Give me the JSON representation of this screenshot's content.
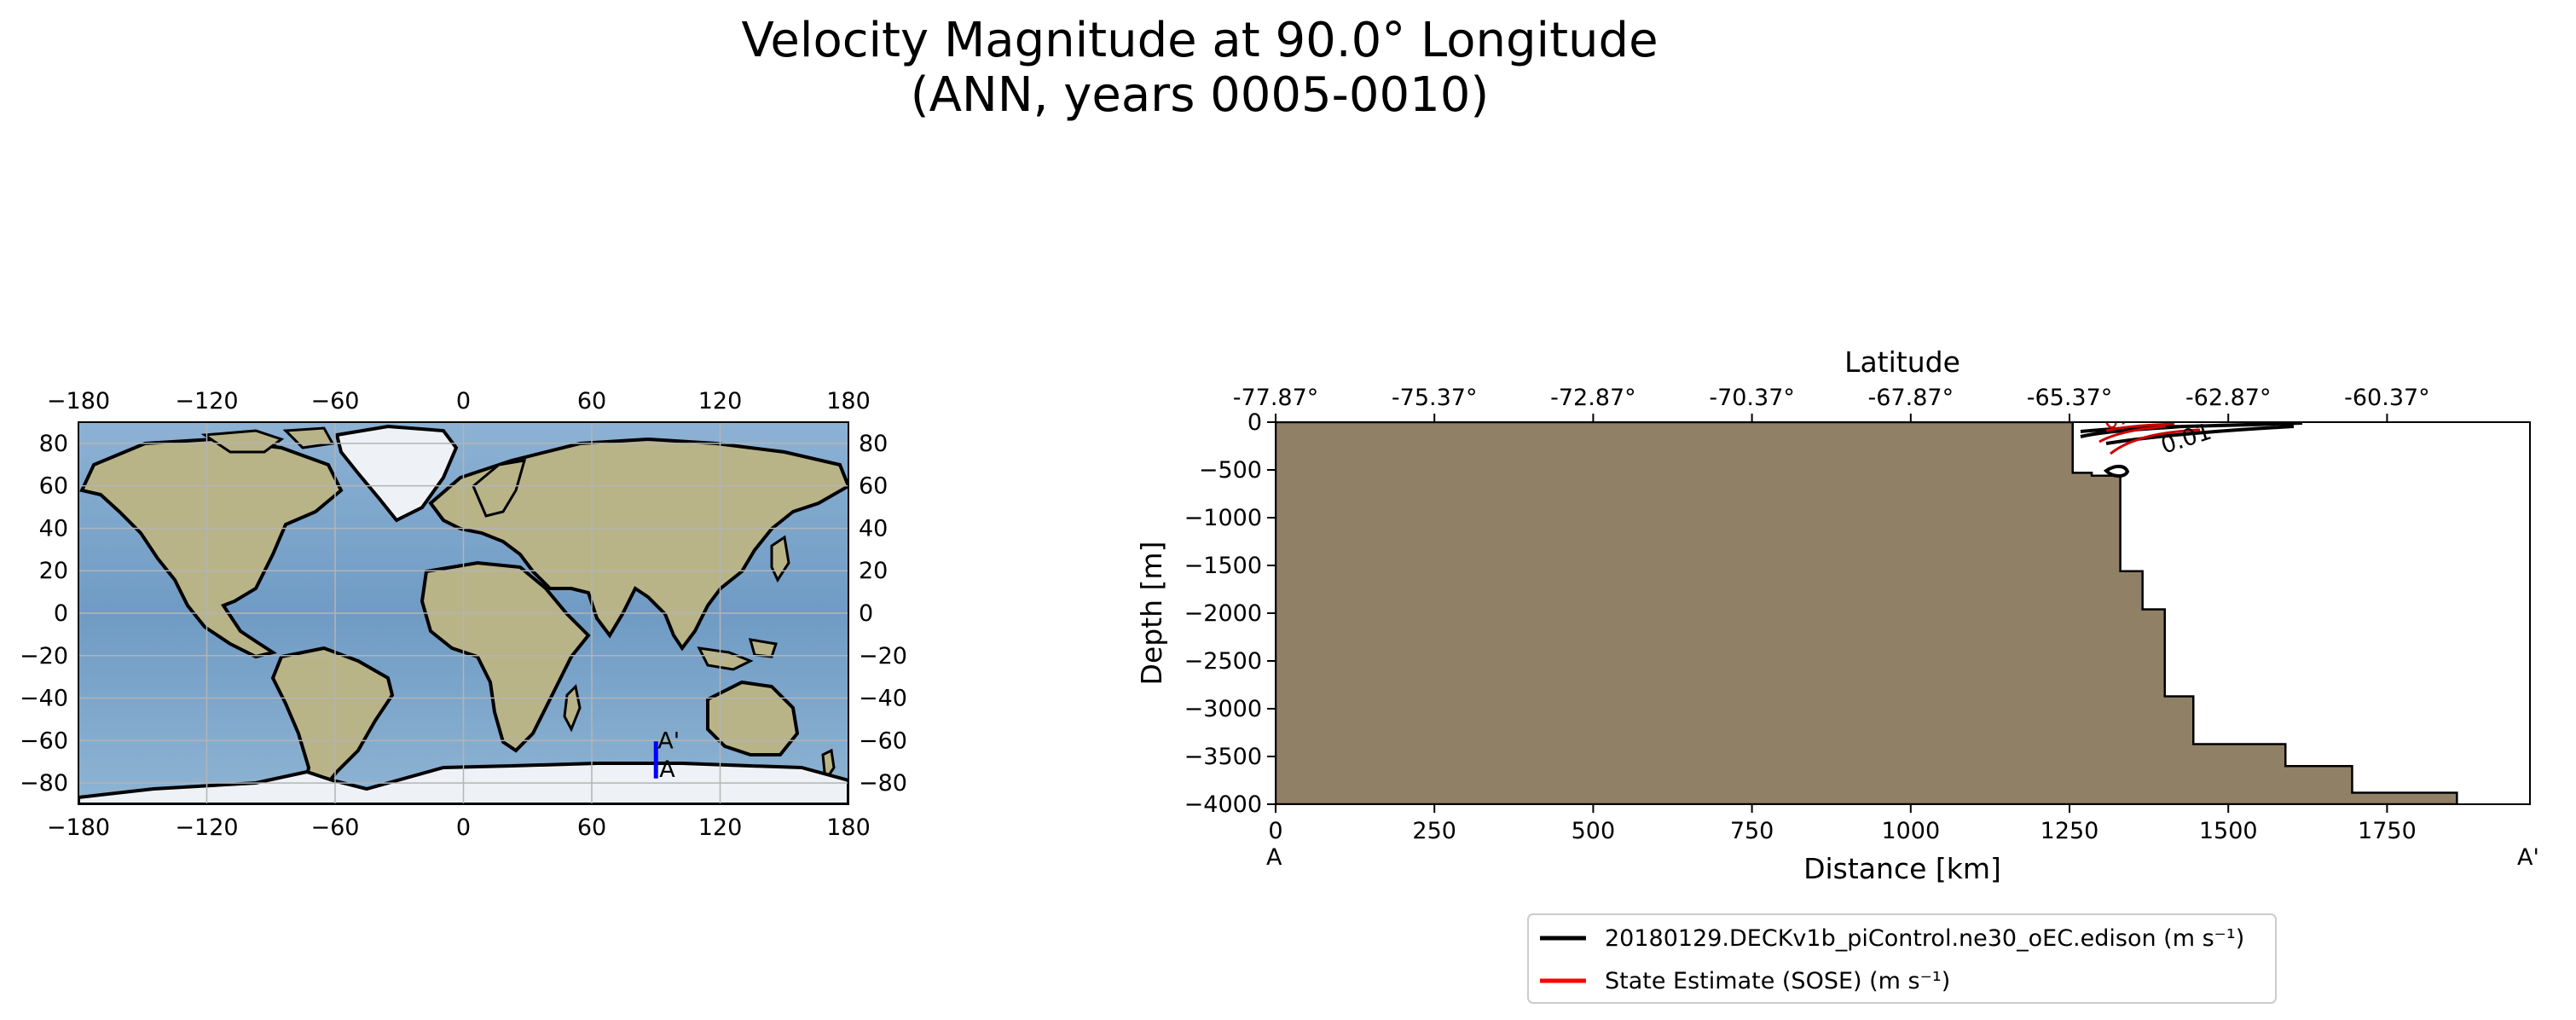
{
  "figure": {
    "title_line1": "Velocity Magnitude at 90.0° Longitude",
    "title_line2": "(ANN, years 0005-0010)"
  },
  "chart_data": [
    {
      "type": "map",
      "projection": "PlateCarree",
      "grid": true,
      "xlim": [
        -180,
        180
      ],
      "ylim": [
        -90,
        90
      ],
      "x_ticks": [
        "−180",
        "−120",
        "−60",
        "0",
        "60",
        "120",
        "180"
      ],
      "y_ticks": [
        "80",
        "60",
        "40",
        "20",
        "0",
        "−20",
        "−40",
        "−60",
        "−80"
      ],
      "x_tick_values": [
        -180,
        -120,
        -60,
        0,
        60,
        120,
        180
      ],
      "y_tick_values": [
        80,
        60,
        40,
        20,
        0,
        -20,
        -40,
        -60,
        -80
      ],
      "transect": {
        "lon": 90,
        "lat_start": -77.87,
        "lat_end": -60.37,
        "color": "#0000ff",
        "start_label": "A",
        "end_label": "A'"
      },
      "colors": {
        "ocean": "#7ea6c9",
        "land": "#b8b487",
        "ice": "#eef1f5"
      }
    },
    {
      "type": "section",
      "xlabel": "Distance [km]",
      "ylabel": "Depth [m]",
      "top_xlabel": "Latitude",
      "xlim": [
        0,
        1975
      ],
      "ylim": [
        -4000,
        0
      ],
      "x_ticks": [
        "0",
        "250",
        "500",
        "750",
        "1000",
        "1250",
        "1500",
        "1750"
      ],
      "x_tick_values": [
        0,
        250,
        500,
        750,
        1000,
        1250,
        1500,
        1750
      ],
      "y_ticks": [
        "0",
        "−500",
        "−1000",
        "−1500",
        "−2000",
        "−2500",
        "−3000",
        "−3500",
        "−4000"
      ],
      "y_tick_values": [
        0,
        -500,
        -1000,
        -1500,
        -2000,
        -2500,
        -3000,
        -3500,
        -4000
      ],
      "top_ticks": [
        "-77.87°",
        "-75.37°",
        "-72.87°",
        "-70.37°",
        "-67.87°",
        "-65.37°",
        "-62.87°",
        "-60.37°"
      ],
      "top_tick_values": [
        0,
        250,
        500,
        750,
        1000,
        1250,
        1500,
        1750
      ],
      "start_label": "A",
      "end_label": "A'",
      "bathymetry_color": "#908166",
      "bathymetry_step": [
        [
          1255,
          0
        ],
        [
          1255,
          -530
        ],
        [
          1285,
          -530
        ],
        [
          1285,
          -560
        ],
        [
          1330,
          -560
        ],
        [
          1330,
          -1560
        ],
        [
          1365,
          -1560
        ],
        [
          1365,
          -1960
        ],
        [
          1400,
          -1960
        ],
        [
          1400,
          -2870
        ],
        [
          1445,
          -2870
        ],
        [
          1445,
          -3370
        ],
        [
          1590,
          -3370
        ],
        [
          1590,
          -3600
        ],
        [
          1695,
          -3600
        ],
        [
          1695,
          -3880
        ],
        [
          1860,
          -3880
        ],
        [
          1860,
          -4000
        ]
      ],
      "contour_label": "0.01",
      "contour_label_color": "#cc0000",
      "series": [
        {
          "name": "20180129.DECKv1b_piControl.ne30_oEC.edison (m s⁻¹)",
          "color": "#000000"
        },
        {
          "name": "State Estimate (SOSE) (m s⁻¹)",
          "color": "#ff0000"
        }
      ]
    }
  ]
}
